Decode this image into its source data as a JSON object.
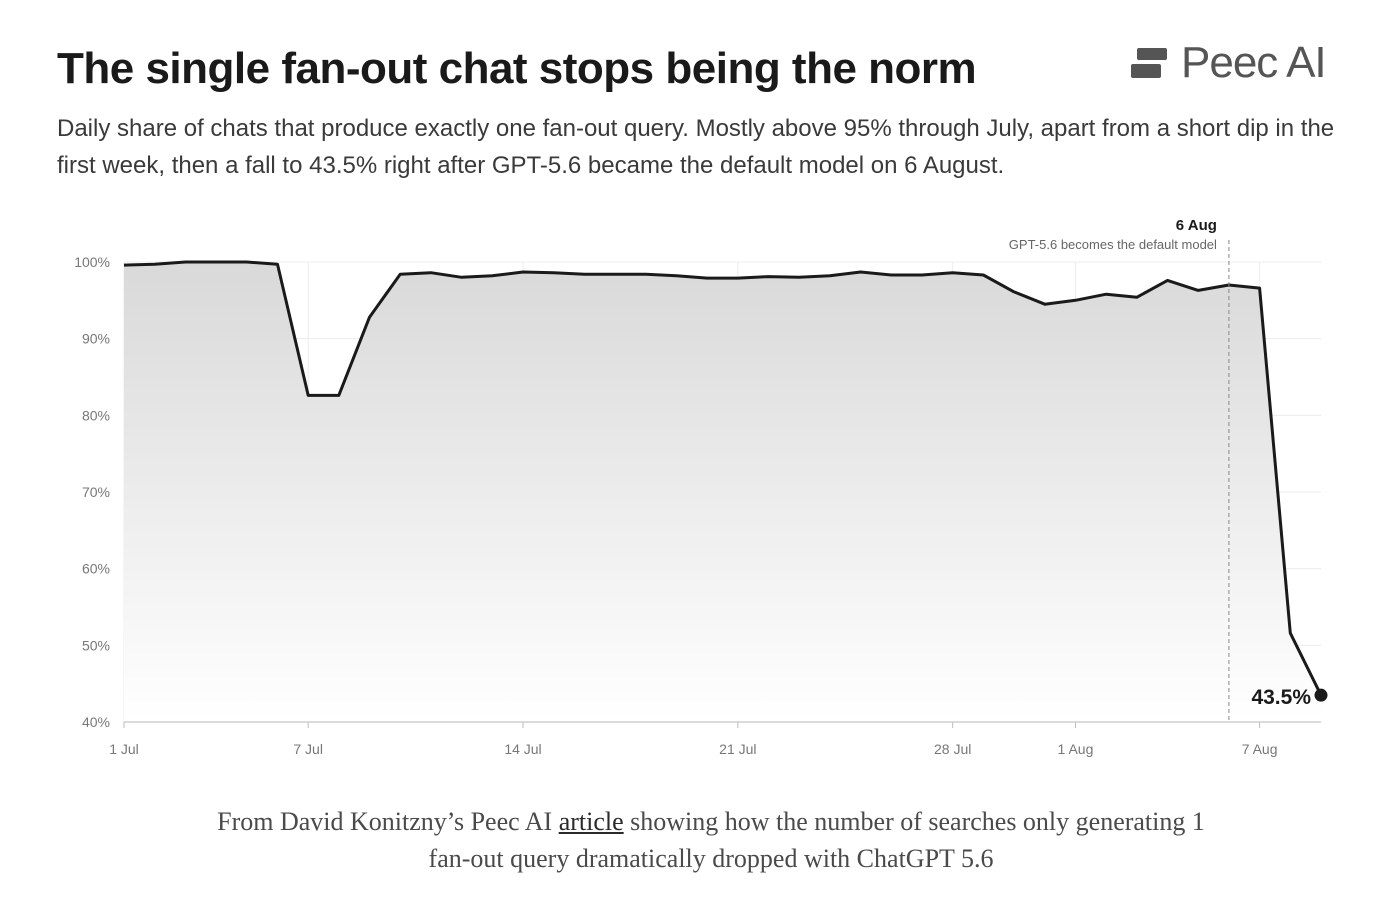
{
  "header": {
    "title": "The single fan-out chat stops being the norm",
    "subtitle": "Daily share of chats that produce exactly one fan-out query. Mostly above 95% through July, apart from a short dip in the first week, then a fall to 43.5% right after GPT-5.6 became the default model on 6 August.",
    "logo_text": "Peec AI"
  },
  "caption": {
    "before": "From David Konitzny’s Peec AI ",
    "link": "article",
    "after": " showing how the number of searches only generating 1 fan-out query dramatically dropped with ChatGPT 5.6"
  },
  "colors": {
    "line": "#1a1a1a",
    "area_top": "#d9d9d9",
    "area_bottom": "#ffffff",
    "grid": "#ececec",
    "marker_line": "#888888"
  },
  "chart_data": {
    "type": "area",
    "title": "The single fan-out chat stops being the norm",
    "ylabel": "",
    "xlabel": "",
    "ylim": [
      40,
      100
    ],
    "yticks": [
      100,
      90,
      80,
      70,
      60,
      50,
      40
    ],
    "ytick_labels": [
      "100%",
      "90%",
      "80%",
      "70%",
      "60%",
      "50%",
      "40%"
    ],
    "xticks": [
      {
        "date": "2025-07-01",
        "label": "1 Jul"
      },
      {
        "date": "2025-07-07",
        "label": "7 Jul"
      },
      {
        "date": "2025-07-14",
        "label": "14 Jul"
      },
      {
        "date": "2025-07-21",
        "label": "21 Jul"
      },
      {
        "date": "2025-07-28",
        "label": "28 Jul"
      },
      {
        "date": "2025-08-01",
        "label": "1 Aug"
      },
      {
        "date": "2025-08-07",
        "label": "7 Aug"
      }
    ],
    "series": [
      {
        "name": "",
        "points": [
          {
            "x": "2025-07-01",
            "y": 99.6
          },
          {
            "x": "2025-07-02",
            "y": 99.7
          },
          {
            "x": "2025-07-03",
            "y": 100.0
          },
          {
            "x": "2025-07-04",
            "y": 100.0
          },
          {
            "x": "2025-07-05",
            "y": 100.0
          },
          {
            "x": "2025-07-06",
            "y": 99.7
          },
          {
            "x": "2025-07-07",
            "y": 82.6
          },
          {
            "x": "2025-07-08",
            "y": 82.6
          },
          {
            "x": "2025-07-09",
            "y": 92.8
          },
          {
            "x": "2025-07-10",
            "y": 98.4
          },
          {
            "x": "2025-07-11",
            "y": 98.6
          },
          {
            "x": "2025-07-12",
            "y": 98.0
          },
          {
            "x": "2025-07-13",
            "y": 98.2
          },
          {
            "x": "2025-07-14",
            "y": 98.7
          },
          {
            "x": "2025-07-15",
            "y": 98.6
          },
          {
            "x": "2025-07-16",
            "y": 98.4
          },
          {
            "x": "2025-07-17",
            "y": 98.4
          },
          {
            "x": "2025-07-18",
            "y": 98.4
          },
          {
            "x": "2025-07-19",
            "y": 98.2
          },
          {
            "x": "2025-07-20",
            "y": 97.9
          },
          {
            "x": "2025-07-21",
            "y": 97.9
          },
          {
            "x": "2025-07-22",
            "y": 98.1
          },
          {
            "x": "2025-07-23",
            "y": 98.0
          },
          {
            "x": "2025-07-24",
            "y": 98.2
          },
          {
            "x": "2025-07-25",
            "y": 98.7
          },
          {
            "x": "2025-07-26",
            "y": 98.3
          },
          {
            "x": "2025-07-27",
            "y": 98.3
          },
          {
            "x": "2025-07-28",
            "y": 98.6
          },
          {
            "x": "2025-07-29",
            "y": 98.3
          },
          {
            "x": "2025-07-30",
            "y": 96.1
          },
          {
            "x": "2025-07-31",
            "y": 94.5
          },
          {
            "x": "2025-08-01",
            "y": 95.0
          },
          {
            "x": "2025-08-02",
            "y": 95.8
          },
          {
            "x": "2025-08-03",
            "y": 95.4
          },
          {
            "x": "2025-08-04",
            "y": 97.6
          },
          {
            "x": "2025-08-05",
            "y": 96.3
          },
          {
            "x": "2025-08-06",
            "y": 97.0
          },
          {
            "x": "2025-08-07",
            "y": 96.6
          },
          {
            "x": "2025-08-08",
            "y": 51.6
          },
          {
            "x": "2025-08-09",
            "y": 43.5
          }
        ]
      }
    ],
    "annotations": [
      {
        "type": "vline",
        "x": "2025-08-06",
        "label": "6 Aug",
        "sublabel": "GPT-5.6 becomes the default model"
      },
      {
        "type": "point_label",
        "x": "2025-08-09",
        "y": 43.5,
        "label": "43.5%"
      }
    ],
    "grid": true,
    "legend": "none"
  }
}
